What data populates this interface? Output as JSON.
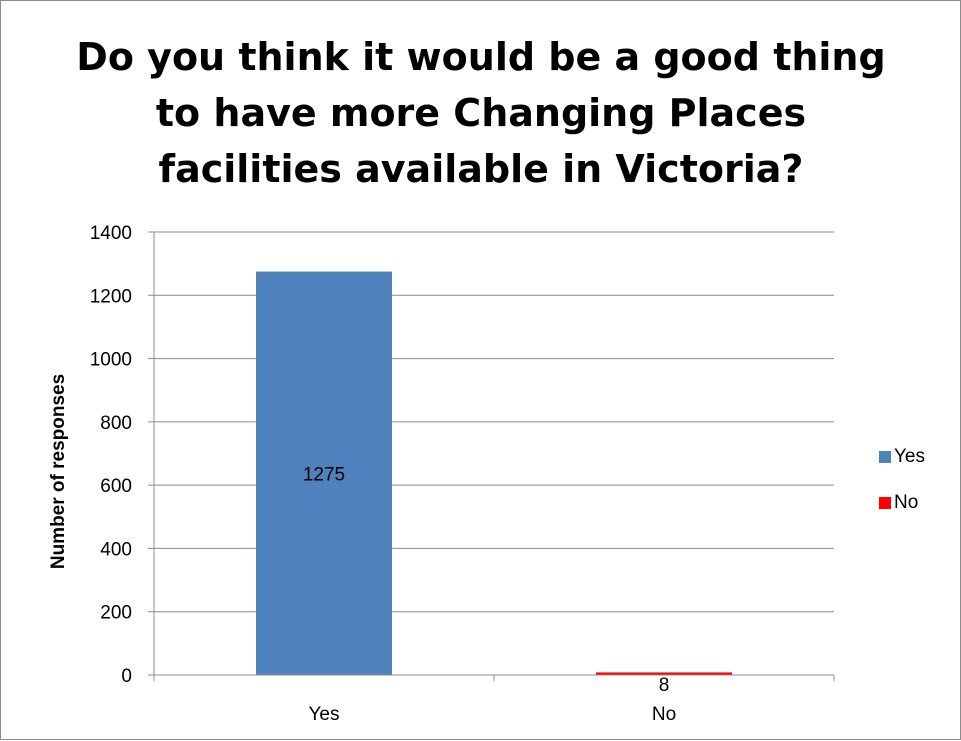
{
  "chart_data": {
    "type": "bar",
    "title": "Do you think it would be a good thing to have more Changing Places facilities available in Victoria?",
    "xlabel": "",
    "ylabel": "Number of responses",
    "categories": [
      "Yes",
      "No"
    ],
    "values": [
      1275,
      8
    ],
    "colors": [
      "#4f81bd",
      "#ff0000"
    ],
    "data_labels": [
      "1275",
      "8"
    ],
    "ylim": [
      0,
      1400
    ],
    "yticks": [
      0,
      200,
      400,
      600,
      800,
      1000,
      1200,
      1400
    ],
    "grid": true,
    "legend": {
      "position": "right",
      "entries": [
        {
          "label": "Yes",
          "color": "#4f81bd"
        },
        {
          "label": "No",
          "color": "#ff0000"
        }
      ]
    }
  }
}
